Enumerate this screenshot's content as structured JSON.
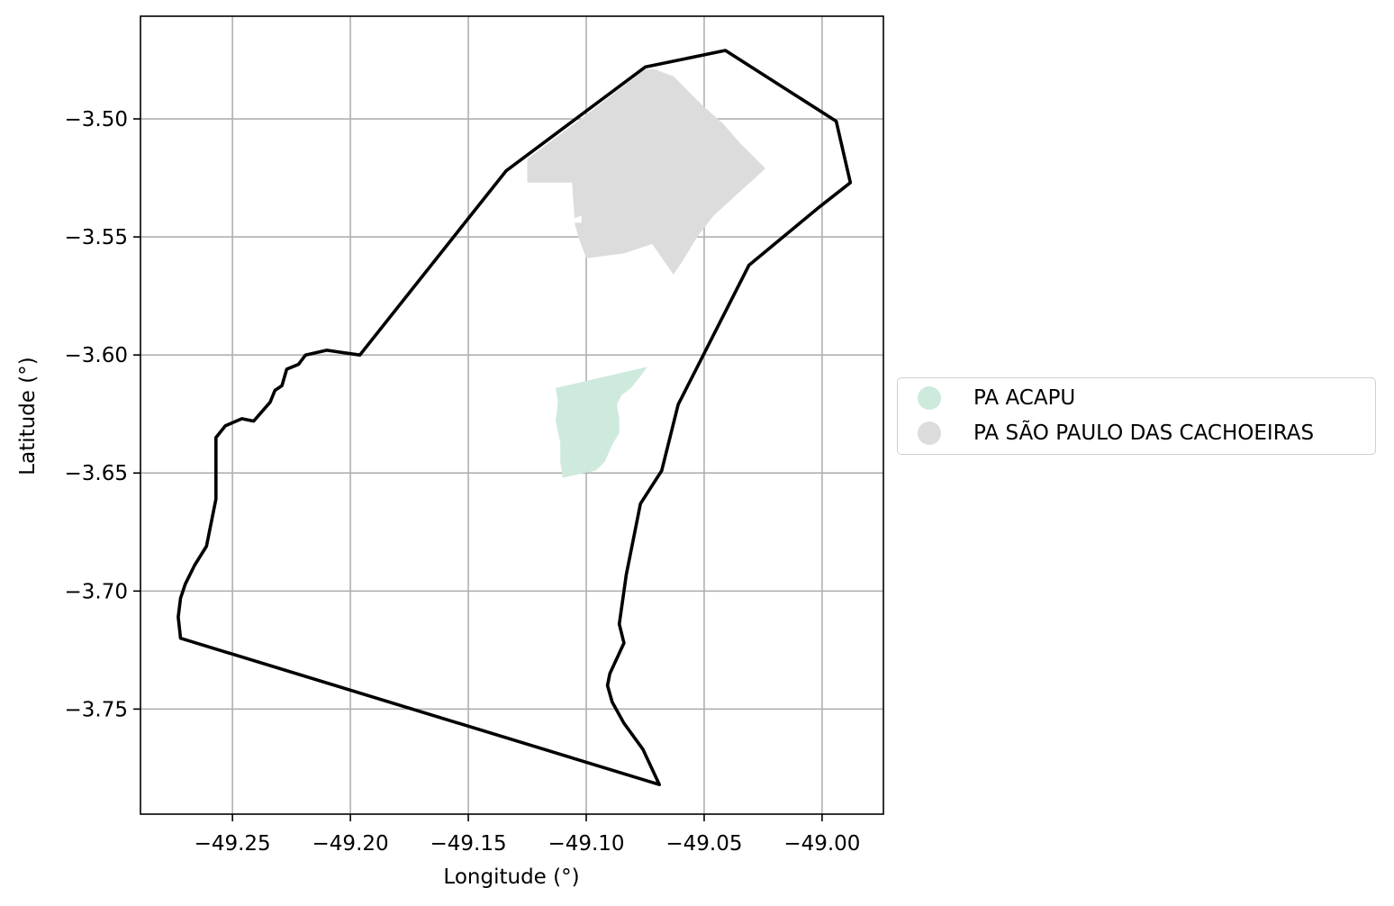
{
  "chart_data": {
    "type": "map",
    "xlabel": "Longitude (°)",
    "ylabel": "Latitude (°)",
    "xlim": [
      -49.289,
      -48.974
    ],
    "ylim": [
      -3.7945,
      -3.4565
    ],
    "x_ticks": [
      -49.25,
      -49.2,
      -49.15,
      -49.1,
      -49.05,
      -49.0
    ],
    "x_tick_labels": [
      "−49.25",
      "−49.20",
      "−49.15",
      "−49.10",
      "−49.05",
      "−49.00"
    ],
    "y_ticks": [
      -3.5,
      -3.55,
      -3.6,
      -3.65,
      -3.7,
      -3.75
    ],
    "y_tick_labels": [
      "−3.50",
      "−3.55",
      "−3.60",
      "−3.65",
      "−3.70",
      "−3.75"
    ],
    "grid": true,
    "legend_location": "center-right outside",
    "boundary": {
      "color": "#000000",
      "coordinates": [
        [
          -49.041,
          -3.471
        ],
        [
          -49.075,
          -3.478
        ],
        [
          -49.134,
          -3.522
        ],
        [
          -49.196,
          -3.6
        ],
        [
          -49.21,
          -3.598
        ],
        [
          -49.219,
          -3.6
        ],
        [
          -49.222,
          -3.604
        ],
        [
          -49.227,
          -3.606
        ],
        [
          -49.229,
          -3.613
        ],
        [
          -49.232,
          -3.615
        ],
        [
          -49.234,
          -3.62
        ],
        [
          -49.241,
          -3.628
        ],
        [
          -49.246,
          -3.627
        ],
        [
          -49.253,
          -3.63
        ],
        [
          -49.257,
          -3.635
        ],
        [
          -49.257,
          -3.644
        ],
        [
          -49.257,
          -3.661
        ],
        [
          -49.261,
          -3.681
        ],
        [
          -49.266,
          -3.689
        ],
        [
          -49.27,
          -3.697
        ],
        [
          -49.272,
          -3.703
        ],
        [
          -49.273,
          -3.711
        ],
        [
          -49.272,
          -3.72
        ],
        [
          -49.069,
          -3.782
        ],
        [
          -49.076,
          -3.767
        ],
        [
          -49.084,
          -3.756
        ],
        [
          -49.089,
          -3.747
        ],
        [
          -49.091,
          -3.74
        ],
        [
          -49.09,
          -3.735
        ],
        [
          -49.084,
          -3.722
        ],
        [
          -49.086,
          -3.714
        ],
        [
          -49.083,
          -3.693
        ],
        [
          -49.077,
          -3.663
        ],
        [
          -49.068,
          -3.649
        ],
        [
          -49.061,
          -3.621
        ],
        [
          -49.031,
          -3.562
        ],
        [
          -49.002,
          -3.538
        ],
        [
          -48.988,
          -3.527
        ],
        [
          -48.994,
          -3.501
        ]
      ]
    },
    "series": [
      {
        "name": "PA ACAPU",
        "color": "#cdeadd",
        "coordinates": [
          [
            -49.113,
            -3.614
          ],
          [
            -49.074,
            -3.605
          ],
          [
            -49.077,
            -3.609
          ],
          [
            -49.081,
            -3.614
          ],
          [
            -49.085,
            -3.617
          ],
          [
            -49.087,
            -3.621
          ],
          [
            -49.086,
            -3.627
          ],
          [
            -49.086,
            -3.633
          ],
          [
            -49.089,
            -3.638
          ],
          [
            -49.092,
            -3.645
          ],
          [
            -49.096,
            -3.649
          ],
          [
            -49.101,
            -3.65
          ],
          [
            -49.11,
            -3.652
          ],
          [
            -49.111,
            -3.645
          ],
          [
            -49.111,
            -3.637
          ],
          [
            -49.113,
            -3.628
          ],
          [
            -49.112,
            -3.62
          ]
        ]
      },
      {
        "name": "PA SÃO PAULO DAS CACHOEIRAS",
        "color": "#dcdcdc",
        "coordinates": [
          [
            -49.071,
            -3.479
          ],
          [
            -49.063,
            -3.482
          ],
          [
            -49.057,
            -3.488
          ],
          [
            -49.051,
            -3.494
          ],
          [
            -49.042,
            -3.502
          ],
          [
            -49.035,
            -3.51
          ],
          [
            -49.029,
            -3.516
          ],
          [
            -49.024,
            -3.521
          ],
          [
            -49.035,
            -3.531
          ],
          [
            -49.046,
            -3.541
          ],
          [
            -49.053,
            -3.55
          ],
          [
            -49.059,
            -3.56
          ],
          [
            -49.063,
            -3.566
          ],
          [
            -49.072,
            -3.553
          ],
          [
            -49.084,
            -3.557
          ],
          [
            -49.1,
            -3.559
          ],
          [
            -49.103,
            -3.551
          ],
          [
            -49.105,
            -3.544
          ],
          [
            -49.102,
            -3.544
          ],
          [
            -49.102,
            -3.541
          ],
          [
            -49.105,
            -3.542
          ],
          [
            -49.106,
            -3.527
          ],
          [
            -49.125,
            -3.527
          ],
          [
            -49.125,
            -3.517
          ],
          [
            -49.101,
            -3.499
          ],
          [
            -49.075,
            -3.479
          ]
        ]
      }
    ]
  }
}
